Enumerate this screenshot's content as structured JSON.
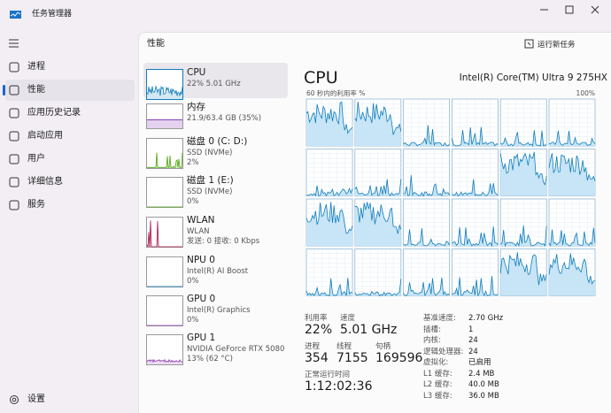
{
  "window": {
    "title": "任务管理器"
  },
  "nav": {
    "items": [
      "进程",
      "性能",
      "应用历史记录",
      "启动应用",
      "用户",
      "详细信息",
      "服务"
    ],
    "settings": "设置"
  },
  "header": {
    "title": "性能",
    "run_task": "运行新任务"
  },
  "devices": [
    {
      "name": "CPU",
      "lines": [
        "22% 5.01 GHz"
      ]
    },
    {
      "name": "内存",
      "lines": [
        "21.9/63.4 GB (35%)"
      ]
    },
    {
      "name": "磁盘 0 (C: D:)",
      "lines": [
        "SSD (NVMe)",
        "2%"
      ]
    },
    {
      "name": "磁盘 1 (E:)",
      "lines": [
        "SSD (NVMe)",
        "0%"
      ]
    },
    {
      "name": "WLAN",
      "lines": [
        "WLAN",
        "发送: 0 接收: 0 Kbps"
      ]
    },
    {
      "name": "NPU 0",
      "lines": [
        "Intel(R) AI Boost",
        "0%"
      ]
    },
    {
      "name": "GPU 0",
      "lines": [
        "Intel(R) Graphics",
        "0%"
      ]
    },
    {
      "name": "GPU 1",
      "lines": [
        "NVIDIA GeForce RTX 5080 L...",
        "13% (62 °C)"
      ]
    }
  ],
  "cpu": {
    "title": "CPU",
    "model": "Intel(R) Core(TM) Ultra 9 275HX",
    "graph_label": "60 秒内的利用率 %",
    "graph_max": "100%",
    "utilization": {
      "label": "利用率",
      "value": "22%"
    },
    "speed": {
      "label": "速度",
      "value": "5.01 GHz"
    },
    "processes": {
      "label": "进程",
      "value": "354"
    },
    "threads": {
      "label": "线程",
      "value": "7155"
    },
    "handles": {
      "label": "句柄",
      "value": "169596"
    },
    "uptime": {
      "label": "正常运行时间",
      "value": "1:12:02:36"
    },
    "details": [
      {
        "label": "基准速度:",
        "value": "2.70 GHz"
      },
      {
        "label": "插槽:",
        "value": "1"
      },
      {
        "label": "内核:",
        "value": "24"
      },
      {
        "label": "逻辑处理器:",
        "value": "24"
      },
      {
        "label": "虚拟化:",
        "value": "已启用"
      },
      {
        "label": "L1 缓存:",
        "value": "2.4 MB"
      },
      {
        "label": "L2 缓存:",
        "value": "40.0 MB"
      },
      {
        "label": "L3 缓存:",
        "value": "36.0 MB"
      }
    ]
  }
}
